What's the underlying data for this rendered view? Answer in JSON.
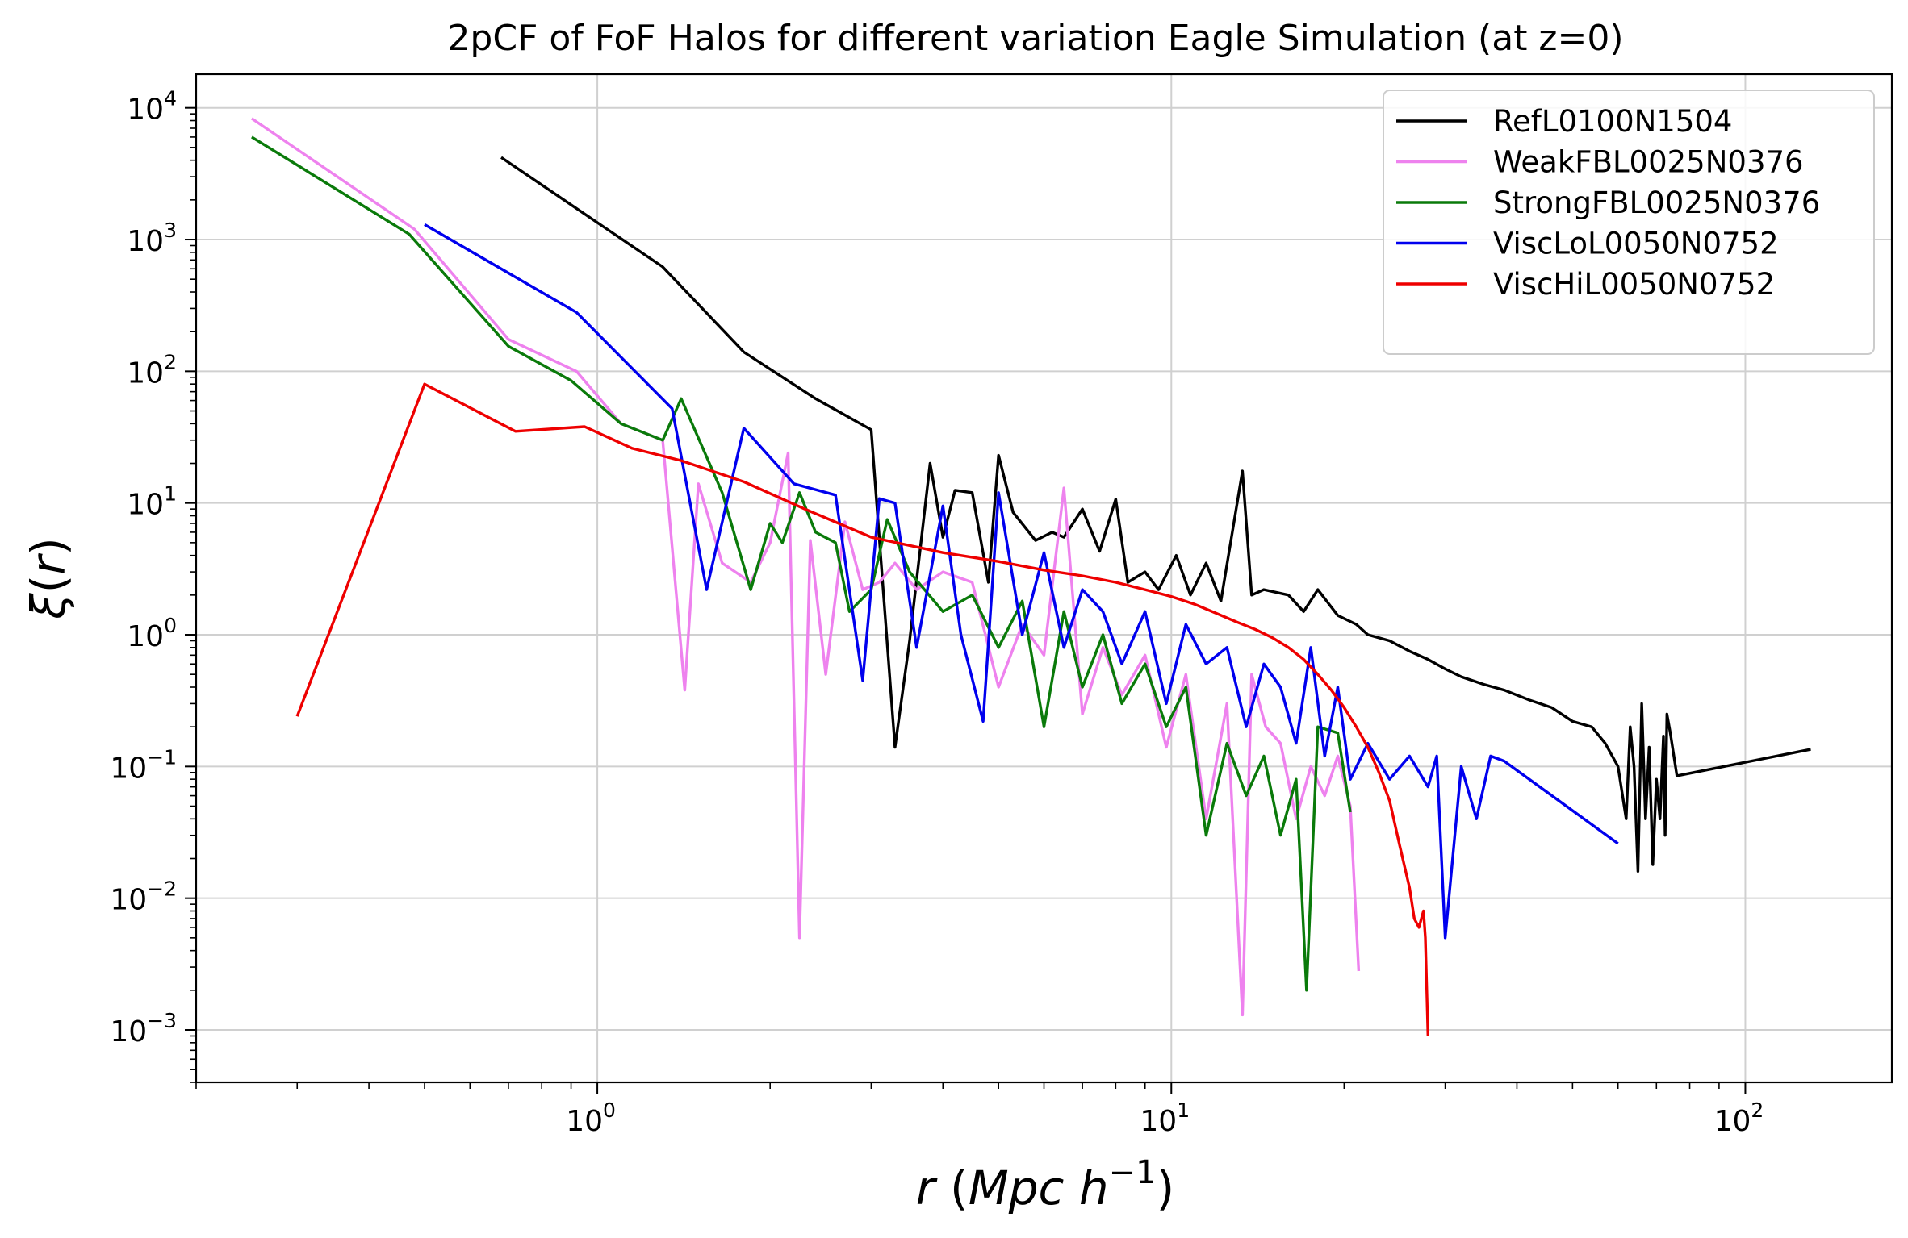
{
  "chart_data": {
    "type": "line",
    "title": "2pCF of FoF Halos for different variation Eagle Simulation (at z=0)",
    "xlabel": {
      "main": "r",
      "paren_open": " (",
      "unit": "Mpc h",
      "exp": "−1",
      "paren_close": ")"
    },
    "ylabel": {
      "main": "ξ",
      "paren_open": "(",
      "var": "r",
      "paren_close": ")"
    },
    "xscale": "log",
    "yscale": "log",
    "xlim": [
      0.2,
      180
    ],
    "ylim": [
      0.0004,
      18000
    ],
    "grid": true,
    "legend_position": "top-right",
    "x_ticks": [
      {
        "value": 1,
        "base": "10",
        "exp": "0"
      },
      {
        "value": 10,
        "base": "10",
        "exp": "1"
      },
      {
        "value": 100,
        "base": "10",
        "exp": "2"
      }
    ],
    "y_ticks": [
      {
        "value": 10000,
        "base": "10",
        "exp": "4"
      },
      {
        "value": 1000,
        "base": "10",
        "exp": "3"
      },
      {
        "value": 100,
        "base": "10",
        "exp": "2"
      },
      {
        "value": 10,
        "base": "10",
        "exp": "1"
      },
      {
        "value": 1,
        "base": "10",
        "exp": "0"
      },
      {
        "value": 0.1,
        "base": "10",
        "exp": "−1"
      },
      {
        "value": 0.01,
        "base": "10",
        "exp": "−2"
      },
      {
        "value": 0.001,
        "base": "10",
        "exp": "−3"
      }
    ],
    "series": [
      {
        "name": "RefL0100N1504",
        "color": "#000000",
        "x": [
          0.68,
          1.3,
          1.8,
          2.4,
          3.0,
          3.3,
          3.5,
          3.8,
          4.0,
          4.2,
          4.5,
          4.8,
          5.0,
          5.3,
          5.8,
          6.2,
          6.5,
          7.0,
          7.5,
          8.0,
          8.4,
          9.0,
          9.5,
          10.2,
          10.8,
          11.5,
          12.2,
          13.3,
          13.8,
          14.5,
          16,
          17,
          18,
          19.5,
          21,
          22,
          24,
          26,
          28,
          30,
          32,
          35,
          38,
          42,
          46,
          50,
          54,
          57,
          60,
          62,
          63,
          64,
          65,
          66,
          67,
          68,
          69,
          70,
          71,
          72,
          72.5,
          73,
          74,
          76,
          130
        ],
        "y": [
          4200,
          620,
          140,
          62,
          36,
          0.14,
          0.9,
          20,
          5.5,
          12.5,
          12,
          2.5,
          23,
          8.5,
          5.2,
          6.0,
          5.5,
          9.0,
          4.3,
          10.7,
          2.5,
          3.0,
          2.2,
          4.0,
          2.0,
          3.5,
          1.8,
          17.5,
          2.0,
          2.2,
          2.0,
          1.5,
          2.2,
          1.4,
          1.2,
          1.0,
          0.9,
          0.75,
          0.65,
          0.55,
          0.48,
          0.42,
          0.38,
          0.32,
          0.28,
          0.22,
          0.2,
          0.15,
          0.1,
          0.04,
          0.2,
          0.1,
          0.016,
          0.3,
          0.04,
          0.14,
          0.018,
          0.08,
          0.04,
          0.17,
          0.03,
          0.25,
          0.18,
          0.085,
          0.135
        ]
      },
      {
        "name": "WeakFBL0025N0376",
        "color": "#ee82ee",
        "x": [
          0.25,
          0.48,
          0.7,
          0.92,
          1.1,
          1.3,
          1.42,
          1.5,
          1.65,
          1.85,
          2.0,
          2.15,
          2.25,
          2.35,
          2.5,
          2.7,
          2.9,
          3.1,
          3.3,
          3.6,
          4.0,
          4.5,
          5.0,
          5.5,
          6.0,
          6.5,
          7.0,
          7.6,
          8.2,
          9.0,
          9.8,
          10.6,
          11.5,
          12.5,
          13.3,
          13.8,
          14.6,
          15.5,
          16.5,
          17.5,
          18.5,
          19.5,
          20.5,
          21.2
        ],
        "y": [
          8300,
          1200,
          175,
          100,
          40,
          30,
          0.38,
          14,
          3.5,
          2.5,
          5,
          24,
          0.005,
          5.2,
          0.5,
          7.2,
          2.2,
          2.5,
          3.5,
          2.2,
          3.0,
          2.5,
          0.4,
          1.2,
          0.7,
          13,
          0.25,
          0.8,
          0.35,
          0.7,
          0.14,
          0.5,
          0.04,
          0.3,
          0.0013,
          0.5,
          0.2,
          0.15,
          0.04,
          0.1,
          0.06,
          0.12,
          0.05,
          0.0028
        ]
      },
      {
        "name": "StrongFBL0025N0376",
        "color": "#0a7a0a",
        "x": [
          0.25,
          0.47,
          0.7,
          0.9,
          1.1,
          1.3,
          1.4,
          1.65,
          1.85,
          2.0,
          2.1,
          2.25,
          2.4,
          2.6,
          2.75,
          3.0,
          3.2,
          3.5,
          4.0,
          4.5,
          5.0,
          5.5,
          6.0,
          6.5,
          7.0,
          7.6,
          8.2,
          9.0,
          9.8,
          10.6,
          11.5,
          12.5,
          13.5,
          14.5,
          15.5,
          16.5,
          17.2,
          18.0,
          19.5,
          20.5
        ],
        "y": [
          6000,
          1100,
          155,
          85,
          40,
          30,
          62,
          12,
          2.2,
          7,
          5,
          12,
          6,
          5,
          1.5,
          2.2,
          7.5,
          3,
          1.5,
          2.0,
          0.8,
          1.8,
          0.2,
          1.5,
          0.4,
          1.0,
          0.3,
          0.6,
          0.2,
          0.4,
          0.03,
          0.15,
          0.06,
          0.12,
          0.03,
          0.08,
          0.002,
          0.2,
          0.18,
          0.045
        ]
      },
      {
        "name": "ViscLoL0050N0752",
        "color": "#0000ee",
        "x": [
          0.5,
          0.92,
          1.35,
          1.55,
          1.8,
          2.2,
          2.6,
          2.9,
          3.1,
          3.3,
          3.6,
          4.0,
          4.3,
          4.7,
          5.0,
          5.5,
          6.0,
          6.5,
          7.0,
          7.6,
          8.2,
          9.0,
          9.8,
          10.6,
          11.5,
          12.5,
          13.5,
          14.5,
          15.5,
          16.5,
          17.5,
          18.5,
          19.5,
          20.5,
          22.0,
          24.0,
          26.0,
          28.0,
          29.0,
          30.0,
          32.0,
          34.0,
          36.0,
          38.0,
          60.0
        ],
        "y": [
          1300,
          280,
          52,
          2.2,
          37,
          14,
          11.5,
          0.45,
          10.8,
          10,
          0.8,
          9.5,
          1.0,
          0.22,
          12,
          1.0,
          4.2,
          0.8,
          2.2,
          1.5,
          0.6,
          1.5,
          0.3,
          1.2,
          0.6,
          0.8,
          0.2,
          0.6,
          0.4,
          0.15,
          0.8,
          0.12,
          0.4,
          0.08,
          0.15,
          0.08,
          0.12,
          0.07,
          0.12,
          0.005,
          0.1,
          0.04,
          0.12,
          0.11,
          0.026
        ]
      },
      {
        "name": "ViscHiL0050N0752",
        "color": "#ee0000",
        "x": [
          0.3,
          0.5,
          0.72,
          0.95,
          1.15,
          1.4,
          1.8,
          2.3,
          3.0,
          4.0,
          5.0,
          6.0,
          7.0,
          8.0,
          9.0,
          10.0,
          11.0,
          12.0,
          13.0,
          14.0,
          15.0,
          16.0,
          17.0,
          18.0,
          19.0,
          20.0,
          21.0,
          22.0,
          23.0,
          24.0,
          25.0,
          26.0,
          26.5,
          27.0,
          27.5,
          27.7,
          28.0
        ],
        "y": [
          0.24,
          80,
          35,
          38,
          26,
          21,
          14.5,
          9.0,
          5.5,
          4.2,
          3.6,
          3.1,
          2.8,
          2.5,
          2.2,
          1.95,
          1.7,
          1.45,
          1.25,
          1.1,
          0.95,
          0.8,
          0.65,
          0.5,
          0.38,
          0.28,
          0.2,
          0.14,
          0.09,
          0.055,
          0.025,
          0.012,
          0.007,
          0.006,
          0.008,
          0.005,
          0.0009
        ]
      }
    ]
  }
}
